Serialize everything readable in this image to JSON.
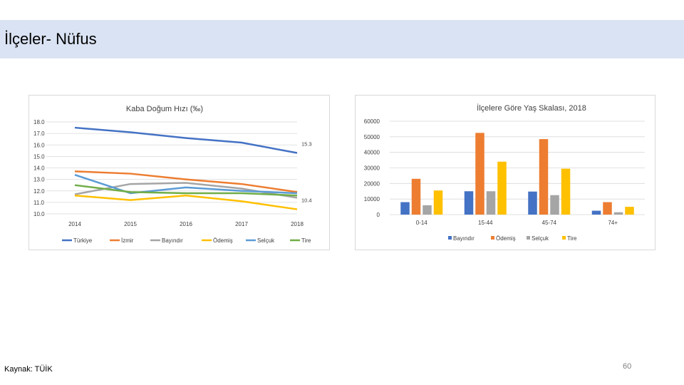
{
  "page": {
    "title": "İlçeler- Nüfus",
    "source": "Kaynak: TÜİK",
    "page_number": "60"
  },
  "chart_data": [
    {
      "type": "line",
      "title": "Kaba Doğum Hızı (‰)",
      "x": [
        "2014",
        "2015",
        "2016",
        "2017",
        "2018"
      ],
      "ylim": [
        10.0,
        18.0
      ],
      "yticks": [
        "10.0",
        "11.0",
        "12.0",
        "13.0",
        "14.0",
        "15.0",
        "16.0",
        "17.0",
        "18.0"
      ],
      "legend_position": "bottom",
      "series": [
        {
          "name": "Türkiye",
          "color": "#4472c4",
          "values": [
            17.5,
            17.1,
            16.6,
            16.2,
            15.3
          ]
        },
        {
          "name": "İzmir",
          "color": "#ed7d31",
          "values": [
            13.7,
            13.5,
            13.0,
            12.6,
            11.9
          ]
        },
        {
          "name": "Bayındır",
          "color": "#a5a5a5",
          "values": [
            11.7,
            12.6,
            12.7,
            12.2,
            11.4
          ]
        },
        {
          "name": "Ödemiş",
          "color": "#ffc000",
          "values": [
            11.6,
            11.2,
            11.6,
            11.1,
            10.4
          ]
        },
        {
          "name": "Selçuk",
          "color": "#5b9bd5",
          "values": [
            13.4,
            11.8,
            12.3,
            12.0,
            11.8
          ]
        },
        {
          "name": "Tire",
          "color": "#70ad47",
          "values": [
            12.5,
            11.9,
            11.8,
            11.8,
            11.6
          ]
        }
      ],
      "data_labels": [
        {
          "series": "Türkiye",
          "index": 4,
          "text": "15.3"
        },
        {
          "series": "Ödemiş",
          "index": 4,
          "text": "10.4"
        }
      ]
    },
    {
      "type": "bar",
      "title": "İlçelere Göre Yaş Skalası, 2018",
      "categories": [
        "0-14",
        "15-44",
        "45-74",
        "74+"
      ],
      "ylim": [
        0,
        60000
      ],
      "yticks": [
        "0",
        "10000",
        "20000",
        "30000",
        "40000",
        "50000",
        "60000"
      ],
      "legend_position": "bottom",
      "series": [
        {
          "name": "Bayındır",
          "color": "#4472c4",
          "values": [
            8000,
            15000,
            14800,
            2500
          ]
        },
        {
          "name": "Ödemiş",
          "color": "#ed7d31",
          "values": [
            23000,
            52500,
            48500,
            8000
          ]
        },
        {
          "name": "Selçuk",
          "color": "#a5a5a5",
          "values": [
            6000,
            15000,
            12500,
            1500
          ]
        },
        {
          "name": "Tire",
          "color": "#ffc000",
          "values": [
            15500,
            34000,
            29500,
            5000
          ]
        }
      ]
    }
  ]
}
